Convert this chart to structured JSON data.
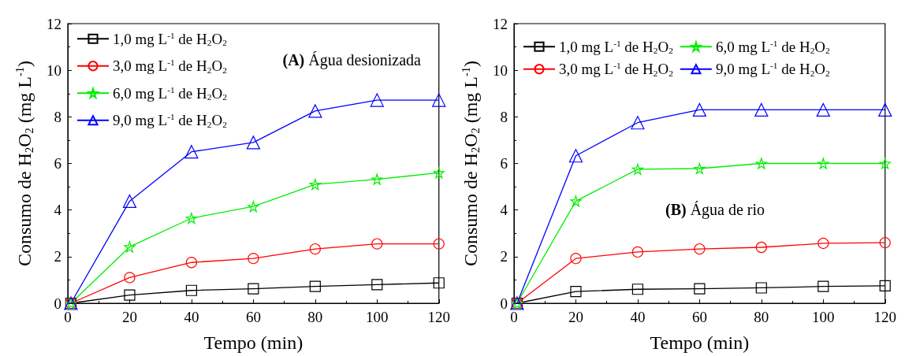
{
  "chart_data": [
    {
      "type": "line",
      "xlabel": "Tempo (min)",
      "ylabel": "Consumo de H$_{2}$O$_{2}$ (mg L$^{-1}$)",
      "annotations": [
        "(A) Água desionizada"
      ],
      "x": [
        1,
        20,
        40,
        60,
        80,
        100,
        120
      ],
      "xlim": [
        0,
        120
      ],
      "xticks": [
        0,
        20,
        40,
        60,
        80,
        100,
        120
      ],
      "ylim": [
        0,
        12
      ],
      "yticks": [
        0,
        2,
        4,
        6,
        8,
        10,
        12
      ],
      "legend": "top left",
      "series": [
        {
          "name": "1,0 mg L$^{-1}$ de H$_{2}$O$_{2}$",
          "color": "#000000",
          "marker": "square",
          "values": [
            0,
            0.35,
            0.55,
            0.62,
            0.72,
            0.8,
            0.87
          ]
        },
        {
          "name": "3,0 mg L$^{-1}$ de H$_{2}$O$_{2}$",
          "color": "#ff0000",
          "marker": "circle",
          "values": [
            0,
            1.1,
            1.75,
            1.92,
            2.33,
            2.55,
            2.55
          ]
        },
        {
          "name": "6,0 mg L$^{-1}$ de H$_{2}$O$_{2}$",
          "color": "#00ee00",
          "marker": "star",
          "values": [
            0,
            2.42,
            3.65,
            4.15,
            5.1,
            5.32,
            5.6
          ]
        },
        {
          "name": "9,0 mg L$^{-1}$ de H$_{2}$O$_{2}$",
          "color": "#0000ff",
          "marker": "triangle",
          "values": [
            0,
            4.38,
            6.5,
            6.9,
            8.25,
            8.72,
            8.72
          ]
        }
      ]
    },
    {
      "type": "line",
      "xlabel": "Tempo (min)",
      "ylabel": "Consumo de H$_{2}$O$_{2}$ (mg L$^{-1}$)",
      "annotations": [
        "(B) Água de rio"
      ],
      "x": [
        1,
        20,
        40,
        60,
        80,
        100,
        120
      ],
      "xlim": [
        0,
        120
      ],
      "xticks": [
        0,
        20,
        40,
        60,
        80,
        100,
        120
      ],
      "ylim": [
        0,
        12
      ],
      "yticks": [
        0,
        2,
        4,
        6,
        8,
        10,
        12
      ],
      "legend": "top",
      "series": [
        {
          "name": "1,0 mg L$^{-1}$ de H$_{2}$O$_{2}$",
          "color": "#000000",
          "marker": "square",
          "values": [
            0,
            0.5,
            0.6,
            0.62,
            0.66,
            0.72,
            0.75
          ]
        },
        {
          "name": "3,0 mg L$^{-1}$ de H$_{2}$O$_{2}$",
          "color": "#ff0000",
          "marker": "circle",
          "values": [
            0,
            1.92,
            2.2,
            2.33,
            2.4,
            2.57,
            2.6
          ]
        },
        {
          "name": "6,0 mg L$^{-1}$ de H$_{2}$O$_{2}$",
          "color": "#00ee00",
          "marker": "star",
          "values": [
            0,
            4.38,
            5.75,
            5.78,
            6.0,
            6.0,
            6.0
          ]
        },
        {
          "name": "9,0 mg L$^{-1}$ de H$_{2}$O$_{2}$",
          "color": "#0000ff",
          "marker": "triangle",
          "values": [
            0,
            6.33,
            7.75,
            8.3,
            8.3,
            8.3,
            8.3
          ]
        }
      ]
    }
  ]
}
